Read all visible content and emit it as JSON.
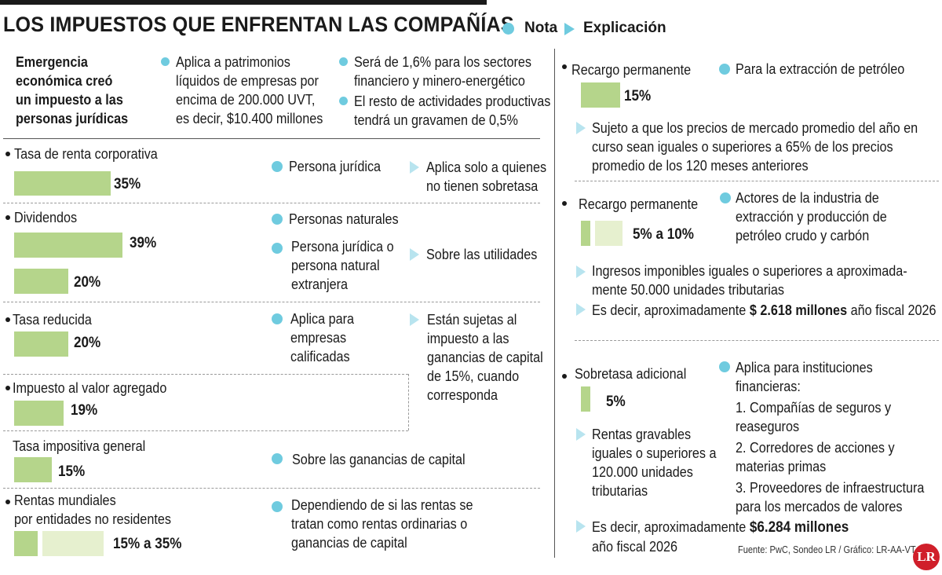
{
  "title": "LOS IMPUESTOS QUE ENFRENTAN LAS COMPAÑÍAS",
  "legend": {
    "nota": "Nota",
    "explicacion": "Explicación"
  },
  "colors": {
    "accent": "#6fcbdf",
    "bar": "#b5d58b",
    "bar_light": "#e6f0cf",
    "light_arrow": "#b8e4ef",
    "logo": "#d01f2a"
  },
  "intro": {
    "heading": [
      "Emergencia",
      "económica creó",
      "un impuesto a las",
      "personas jurídicas"
    ],
    "col1": [
      "Aplica a patrimonios",
      "líquidos de empresas por",
      "encima de 200.000 UVT,",
      "es decir, $10.400 millones"
    ],
    "col2_a": [
      "Será de 1,6% para los sectores",
      "financiero y minero-energético"
    ],
    "col2_b": [
      "El resto de actividades productivas",
      "tendrá un gravamen de 0,5%"
    ]
  },
  "left": {
    "renta": {
      "label": "Tasa de renta corporativa",
      "value": 35,
      "pct": "35%",
      "note": "Persona jurídica",
      "expl": [
        "Aplica solo a quienes",
        "no tienen sobretasa"
      ]
    },
    "dividendos": {
      "label": "Dividendos",
      "bars": [
        {
          "value": 39,
          "pct": "39%"
        },
        {
          "value": 20,
          "pct": "20%"
        }
      ],
      "note1": "Personas naturales",
      "note2": [
        "Persona jurídica o",
        "persona natural",
        "extranjera"
      ],
      "expl": "Sobre las utilidades"
    },
    "reducida": {
      "label": "Tasa reducida",
      "value": 20,
      "pct": "20%",
      "note": [
        "Aplica para",
        "empresas",
        "calificadas"
      ],
      "expl": [
        "Están sujetas al",
        "impuesto a las",
        "ganancias de capital",
        "de 15%, cuando",
        "corresponda"
      ]
    },
    "iva": {
      "label": "Impuesto al valor agregado",
      "value": 19,
      "pct": "19%"
    },
    "general": {
      "label": "Tasa impositiva general",
      "value": 15,
      "pct": "15%",
      "note": "Sobre las ganancias de capital"
    },
    "mundiales": {
      "label": [
        "Rentas mundiales",
        "por entidades no residentes"
      ],
      "range": [
        15,
        35
      ],
      "pct": "15% a 35%",
      "note": [
        "Dependiendo de si las rentas se",
        "tratan como rentas ordinarias o",
        "ganancias de capital"
      ]
    }
  },
  "right": {
    "recargo1": {
      "label": "Recargo permanente",
      "value": 15,
      "pct": "15%",
      "note": "Para la extracción de petróleo",
      "expl": [
        "Sujeto a que los precios de mercado promedio del año en",
        "curso sean iguales o superiores a 65% de los precios",
        "promedio de los 120 meses anteriores"
      ]
    },
    "recargo2": {
      "label": "Recargo permanente",
      "range": [
        5,
        10
      ],
      "pct": "5% a 10%",
      "note": [
        "Actores de la industria de",
        "extracción y producción de",
        "petróleo crudo y carbón"
      ],
      "expl1": [
        "Ingresos imponibles iguales o superiores a aproximada-",
        "mente 50.000 unidades tributarias"
      ],
      "expl2_pre": "Es decir, aproximadamente ",
      "expl2_bold": "$ 2.618 millones",
      "expl2_post": " año fiscal 2026"
    },
    "sobretasa": {
      "label": "Sobretasa adicional",
      "value": 5,
      "pct": "5%",
      "note": [
        "Aplica para instituciones",
        "financieras:",
        "1. Compañías de seguros y",
        "reaseguros",
        "2. Corredores de acciones y",
        "materias primas",
        "3. Proveedores de infraestructura",
        "para los mercados de valores"
      ],
      "expl1": [
        "Rentas gravables",
        "iguales o superiores a",
        "120.000 unidades",
        "tributarias"
      ],
      "expl2_pre": "Es decir, aproximadamente ",
      "expl2_bold": "$6.284 millones",
      "expl2_line2": "año fiscal 2026"
    }
  },
  "source": "Fuente: PwC, Sondeo LR / Gráfico: LR-AA-VT",
  "logo": "LR"
}
